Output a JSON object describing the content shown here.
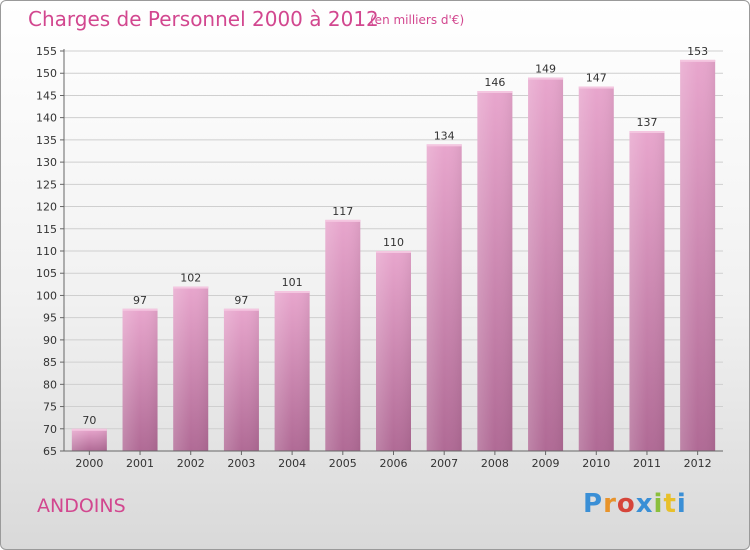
{
  "header": {
    "title": "Charges de Personnel 2000 à 2012",
    "subtitle": "(en milliers d'€)"
  },
  "footer": {
    "commune": "ANDOINS",
    "logo_text": "Proxiti",
    "logo_colors": [
      "#3a8fd6",
      "#e8932a",
      "#d6453a",
      "#3a8fd6",
      "#8bbf3c",
      "#e8c02a",
      "#3a8fd6"
    ]
  },
  "colors": {
    "bar_top": "#e8a6cd",
    "bar_bottom": "#b06a95",
    "text_accent": "#d2478f",
    "axis_text": "#333333"
  },
  "chart_data": {
    "type": "bar",
    "title": "Charges de Personnel 2000 à 2012",
    "subtitle": "(en milliers d'€)",
    "categories": [
      "2000",
      "2001",
      "2002",
      "2003",
      "2004",
      "2005",
      "2006",
      "2007",
      "2008",
      "2009",
      "2010",
      "2011",
      "2012"
    ],
    "values": [
      70,
      97,
      102,
      97,
      101,
      117,
      110,
      134,
      146,
      149,
      147,
      137,
      153
    ],
    "ylim": [
      65,
      155
    ],
    "yticks": [
      65,
      70,
      75,
      80,
      85,
      90,
      95,
      100,
      105,
      110,
      115,
      120,
      125,
      130,
      135,
      140,
      145,
      150,
      155
    ],
    "grid": true,
    "legend": "none"
  }
}
